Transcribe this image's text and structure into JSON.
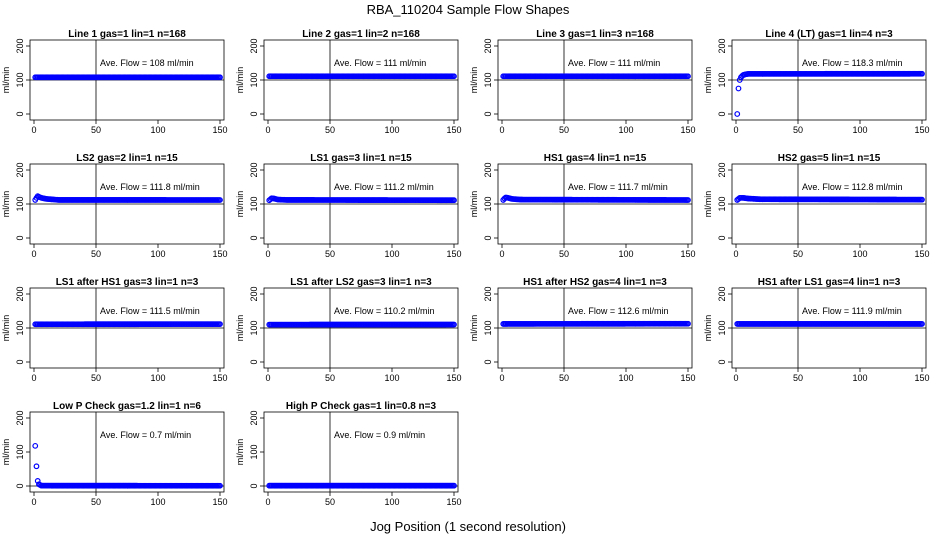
{
  "figure": {
    "title": "RBA_110204  Sample Flow Shapes",
    "xlabel": "Jog Position (1 second resolution)"
  },
  "chart_data": [
    {
      "type": "scatter",
      "title": "Line 1 gas=1 lin=1 n=168",
      "ylabel": "ml/min",
      "annotation": "Ave. Flow =  108  ml/min",
      "xlim": [
        0,
        150
      ],
      "ylim": [
        0,
        200
      ],
      "xticks": [
        0,
        50,
        100,
        150
      ],
      "yticks": [
        0,
        100,
        200
      ],
      "vline_x": 50,
      "hline_y": 100,
      "series": [
        {
          "color": "#0000ff",
          "x_range": [
            1,
            150
          ],
          "values": [
            [
              1,
              108
            ],
            [
              3,
              108
            ],
            [
              150,
              108
            ]
          ]
        }
      ]
    },
    {
      "type": "scatter",
      "title": "Line 2 gas=1 lin=2 n=168",
      "ylabel": "ml/min",
      "annotation": "Ave. Flow =  111  ml/min",
      "xlim": [
        0,
        150
      ],
      "ylim": [
        0,
        200
      ],
      "xticks": [
        0,
        50,
        100,
        150
      ],
      "yticks": [
        0,
        100,
        200
      ],
      "vline_x": 50,
      "hline_y": 100,
      "series": [
        {
          "color": "#0000ff",
          "x_range": [
            1,
            150
          ],
          "values": [
            [
              1,
              111
            ],
            [
              150,
              111
            ]
          ]
        }
      ]
    },
    {
      "type": "scatter",
      "title": "Line 3 gas=1 lin=3 n=168",
      "ylabel": "ml/min",
      "annotation": "Ave. Flow =  111  ml/min",
      "xlim": [
        0,
        150
      ],
      "ylim": [
        0,
        200
      ],
      "xticks": [
        0,
        50,
        100,
        150
      ],
      "yticks": [
        0,
        100,
        200
      ],
      "vline_x": 50,
      "hline_y": 100,
      "series": [
        {
          "color": "#0000ff",
          "x_range": [
            1,
            150
          ],
          "values": [
            [
              1,
              111
            ],
            [
              150,
              111
            ]
          ]
        }
      ]
    },
    {
      "type": "scatter",
      "title": "Line 4 (LT) gas=1 lin=4 n=3",
      "ylabel": "ml/min",
      "annotation": "Ave. Flow =  118.3  ml/min",
      "xlim": [
        0,
        150
      ],
      "ylim": [
        0,
        200
      ],
      "xticks": [
        0,
        50,
        100,
        150
      ],
      "yticks": [
        0,
        100,
        200
      ],
      "vline_x": 50,
      "hline_y": 100,
      "series": [
        {
          "color": "#0000ff",
          "x_range": [
            1,
            150
          ],
          "values": [
            [
              1,
              0
            ],
            [
              2,
              75
            ],
            [
              3,
              100
            ],
            [
              4,
              108
            ],
            [
              5,
              112
            ],
            [
              6,
              115
            ],
            [
              8,
              117
            ],
            [
              10,
              118
            ],
            [
              150,
              118.3
            ]
          ]
        }
      ]
    },
    {
      "type": "scatter",
      "title": "LS2 gas=2 lin=1 n=15",
      "ylabel": "ml/min",
      "annotation": "Ave. Flow =  111.8  ml/min",
      "xlim": [
        0,
        150
      ],
      "ylim": [
        0,
        200
      ],
      "xticks": [
        0,
        50,
        100,
        150
      ],
      "yticks": [
        0,
        100,
        200
      ],
      "vline_x": 50,
      "hline_y": 100,
      "series": [
        {
          "color": "#0000ff",
          "x_range": [
            1,
            150
          ],
          "values": [
            [
              1,
              112
            ],
            [
              2,
              118
            ],
            [
              3,
              123
            ],
            [
              4,
              121
            ],
            [
              6,
              118
            ],
            [
              10,
              115
            ],
            [
              20,
              112
            ],
            [
              150,
              111.8
            ]
          ]
        }
      ]
    },
    {
      "type": "scatter",
      "title": "LS1 gas=3 lin=1 n=15",
      "ylabel": "ml/min",
      "annotation": "Ave. Flow =  111.2  ml/min",
      "xlim": [
        0,
        150
      ],
      "ylim": [
        0,
        200
      ],
      "xticks": [
        0,
        50,
        100,
        150
      ],
      "yticks": [
        0,
        100,
        200
      ],
      "vline_x": 50,
      "hline_y": 100,
      "series": [
        {
          "color": "#0000ff",
          "x_range": [
            1,
            150
          ],
          "values": [
            [
              1,
              111
            ],
            [
              2,
              114
            ],
            [
              3,
              117
            ],
            [
              5,
              116
            ],
            [
              8,
              113
            ],
            [
              15,
              112
            ],
            [
              150,
              111.2
            ]
          ]
        }
      ]
    },
    {
      "type": "scatter",
      "title": "HS1 gas=4 lin=1 n=15",
      "ylabel": "ml/min",
      "annotation": "Ave. Flow =  111.7  ml/min",
      "xlim": [
        0,
        150
      ],
      "ylim": [
        0,
        200
      ],
      "xticks": [
        0,
        50,
        100,
        150
      ],
      "yticks": [
        0,
        100,
        200
      ],
      "vline_x": 50,
      "hline_y": 100,
      "series": [
        {
          "color": "#0000ff",
          "x_range": [
            1,
            150
          ],
          "values": [
            [
              1,
              112
            ],
            [
              2,
              116
            ],
            [
              3,
              119
            ],
            [
              5,
              118
            ],
            [
              8,
              115
            ],
            [
              15,
              113
            ],
            [
              150,
              111.7
            ]
          ]
        }
      ]
    },
    {
      "type": "scatter",
      "title": "HS2 gas=5 lin=1 n=15",
      "ylabel": "ml/min",
      "annotation": "Ave. Flow =  112.8  ml/min",
      "xlim": [
        0,
        150
      ],
      "ylim": [
        0,
        200
      ],
      "xticks": [
        0,
        50,
        100,
        150
      ],
      "yticks": [
        0,
        100,
        200
      ],
      "vline_x": 50,
      "hline_y": 100,
      "series": [
        {
          "color": "#0000ff",
          "x_range": [
            1,
            150
          ],
          "values": [
            [
              1,
              112
            ],
            [
              2,
              115
            ],
            [
              3,
              118
            ],
            [
              6,
              118
            ],
            [
              10,
              116
            ],
            [
              20,
              114
            ],
            [
              150,
              112.8
            ]
          ]
        }
      ]
    },
    {
      "type": "scatter",
      "title": "LS1 after HS1 gas=3 lin=1 n=3",
      "ylabel": "ml/min",
      "annotation": "Ave. Flow =  111.5  ml/min",
      "xlim": [
        0,
        150
      ],
      "ylim": [
        0,
        200
      ],
      "xticks": [
        0,
        50,
        100,
        150
      ],
      "yticks": [
        0,
        100,
        200
      ],
      "vline_x": 50,
      "hline_y": 100,
      "series": [
        {
          "color": "#0000ff",
          "x_range": [
            1,
            150
          ],
          "values": [
            [
              1,
              111
            ],
            [
              150,
              111.5
            ]
          ]
        }
      ]
    },
    {
      "type": "scatter",
      "title": "LS1 after LS2 gas=3 lin=1 n=3",
      "ylabel": "ml/min",
      "annotation": "Ave. Flow =  110.2  ml/min",
      "xlim": [
        0,
        150
      ],
      "ylim": [
        0,
        200
      ],
      "xticks": [
        0,
        50,
        100,
        150
      ],
      "yticks": [
        0,
        100,
        200
      ],
      "vline_x": 50,
      "hline_y": 100,
      "series": [
        {
          "color": "#0000ff",
          "x_range": [
            1,
            150
          ],
          "values": [
            [
              1,
              110
            ],
            [
              150,
              110.2
            ]
          ]
        }
      ]
    },
    {
      "type": "scatter",
      "title": "HS1 after HS2 gas=4 lin=1 n=3",
      "ylabel": "ml/min",
      "annotation": "Ave. Flow =  112.6  ml/min",
      "xlim": [
        0,
        150
      ],
      "ylim": [
        0,
        200
      ],
      "xticks": [
        0,
        50,
        100,
        150
      ],
      "yticks": [
        0,
        100,
        200
      ],
      "vline_x": 50,
      "hline_y": 100,
      "series": [
        {
          "color": "#0000ff",
          "x_range": [
            1,
            150
          ],
          "values": [
            [
              1,
              112
            ],
            [
              150,
              112.6
            ]
          ]
        }
      ]
    },
    {
      "type": "scatter",
      "title": "HS1 after LS1 gas=4 lin=1 n=3",
      "ylabel": "ml/min",
      "annotation": "Ave. Flow =  111.9  ml/min",
      "xlim": [
        0,
        150
      ],
      "ylim": [
        0,
        200
      ],
      "xticks": [
        0,
        50,
        100,
        150
      ],
      "yticks": [
        0,
        100,
        200
      ],
      "vline_x": 50,
      "hline_y": 100,
      "series": [
        {
          "color": "#0000ff",
          "x_range": [
            1,
            150
          ],
          "values": [
            [
              1,
              112
            ],
            [
              150,
              111.9
            ]
          ]
        }
      ]
    },
    {
      "type": "scatter",
      "title": "Low P Check gas=1.2 lin=1 n=6",
      "ylabel": "ml/min",
      "annotation": "Ave. Flow =  0.7  ml/min",
      "xlim": [
        0,
        150
      ],
      "ylim": [
        0,
        200
      ],
      "xticks": [
        0,
        50,
        100,
        150
      ],
      "yticks": [
        0,
        100,
        200
      ],
      "vline_x": 50,
      "hline_y": 0,
      "series": [
        {
          "color": "#0000ff",
          "x_range": [
            1,
            150
          ],
          "values": [
            [
              1,
              118
            ],
            [
              2,
              58
            ],
            [
              3,
              15
            ],
            [
              4,
              5
            ],
            [
              6,
              1
            ],
            [
              150,
              0.7
            ]
          ]
        }
      ]
    },
    {
      "type": "scatter",
      "title": "High P Check gas=1 lin=0.8 n=3",
      "ylabel": "ml/min",
      "annotation": "Ave. Flow =  0.9  ml/min",
      "xlim": [
        0,
        150
      ],
      "ylim": [
        0,
        200
      ],
      "xticks": [
        0,
        50,
        100,
        150
      ],
      "yticks": [
        0,
        100,
        200
      ],
      "vline_x": 50,
      "hline_y": 0,
      "series": [
        {
          "color": "#0000ff",
          "x_range": [
            1,
            150
          ],
          "values": [
            [
              1,
              0.9
            ],
            [
              150,
              0.9
            ]
          ]
        }
      ]
    }
  ]
}
